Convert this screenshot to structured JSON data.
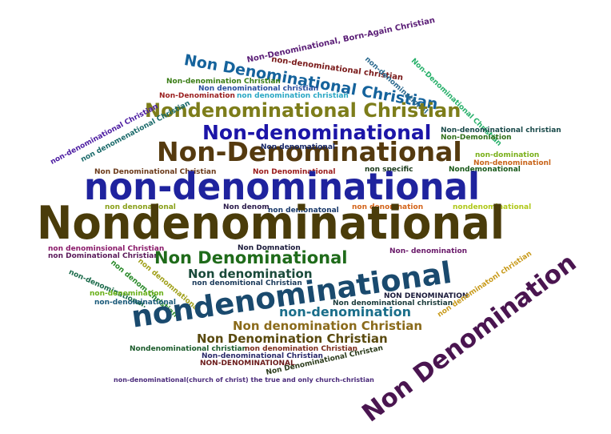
{
  "words": [
    {
      "text": "Non-Denominational, Born-Again Christian",
      "color": "#5b1e77"
    },
    {
      "text": "non-denominational christian",
      "color": "#7a1a1a"
    },
    {
      "text": "Non Denominational Christian",
      "color": "#15639c"
    },
    {
      "text": "non-denominational",
      "color": "#2b6a8f"
    },
    {
      "text": "Non-Denominational Christian",
      "color": "#27b06a"
    },
    {
      "text": "Non-denomination Christian",
      "color": "#3a7d15"
    },
    {
      "text": "Non denominational christian",
      "color": "#2a4fa0"
    },
    {
      "text": "Non-Denomination",
      "color": "#9a1e1e"
    },
    {
      "text": "non denomination christian",
      "color": "#2aa7c4"
    },
    {
      "text": "Nondenominational Christian",
      "color": "#7d7d1a"
    },
    {
      "text": "Non-denominational",
      "color": "#1c15a8"
    },
    {
      "text": "Non-denominational christian",
      "color": "#1a4a4a"
    },
    {
      "text": "Non-Demoniation",
      "color": "#2f6f1a"
    },
    {
      "text": "non-denominational Christian",
      "color": "#4a1aa0"
    },
    {
      "text": "non denomenational Christian",
      "color": "#1a6a6a"
    },
    {
      "text": "Non-Denominational",
      "color": "#553a0f"
    },
    {
      "text": "Non denomational",
      "color": "#1a2a6a"
    },
    {
      "text": "non-domination",
      "color": "#7ab01a"
    },
    {
      "text": "Non-denominationl",
      "color": "#c8641a"
    },
    {
      "text": "Non Denominational Christian",
      "color": "#6b3a1a"
    },
    {
      "text": "Non Denominational",
      "color": "#9a1a1a"
    },
    {
      "text": "non specific",
      "color": "#1a3a1a"
    },
    {
      "text": "Nondemonational",
      "color": "#1a5a1a"
    },
    {
      "text": "non-denominational",
      "color": "#1f239e"
    },
    {
      "text": "non denonational",
      "color": "#8aa01a"
    },
    {
      "text": "Non denom",
      "color": "#2a1a4a"
    },
    {
      "text": "non demonatonal",
      "color": "#1a3a6a"
    },
    {
      "text": "non denomnation",
      "color": "#d4641a"
    },
    {
      "text": "nondenominational",
      "color": "#b0c81a"
    },
    {
      "text": "Nondenominational",
      "color": "#4a3c0a"
    },
    {
      "text": "non denominsional Christian",
      "color": "#8a1a6a"
    },
    {
      "text": "non Dominational Christian",
      "color": "#5a1a5a"
    },
    {
      "text": "non denomnational",
      "color": "#a0a01a"
    },
    {
      "text": "non denom Christian",
      "color": "#2a8a2a"
    },
    {
      "text": "non-denominational.",
      "color": "#1a6a4a"
    },
    {
      "text": "Non Domnation",
      "color": "#1a1a3a"
    },
    {
      "text": "Non Denominational",
      "color": "#1f6b1a"
    },
    {
      "text": "Non- denomination",
      "color": "#6a1a6a"
    },
    {
      "text": "Non denomination",
      "color": "#1a4a3a"
    },
    {
      "text": "non denomitional Christian",
      "color": "#1a3a5a"
    },
    {
      "text": "non-denomination",
      "color": "#6ab01a"
    },
    {
      "text": "non-denominational",
      "color": "#1a5a7a"
    },
    {
      "text": "nondenominational",
      "color": "#1a4a6e"
    },
    {
      "text": "NON DENOMINATION",
      "color": "#1a1a3a"
    },
    {
      "text": "non-denomination",
      "color": "#1a6e8a"
    },
    {
      "text": "Non denominational christian",
      "color": "#1a3a3a"
    },
    {
      "text": "non denominatonl christian",
      "color": "#c89a1a"
    },
    {
      "text": "Non Denomination",
      "color": "#4a1550"
    },
    {
      "text": "Non denomination Christian",
      "color": "#8a6a1a"
    },
    {
      "text": "Non Denomination Christian",
      "color": "#5a4a0f"
    },
    {
      "text": "Nondenominational christian",
      "color": "#1a5a2a"
    },
    {
      "text": "non denomination Christian",
      "color": "#7a2a1a"
    },
    {
      "text": "Non-denominational Christian",
      "color": "#2a2a6a"
    },
    {
      "text": "NON-DENOMINATIONAL",
      "color": "#6a1a1a"
    },
    {
      "text": "Non Denominational Christan",
      "color": "#2a3a1a"
    },
    {
      "text": "non-denominational(church of christ) the true and only church-christian",
      "color": "#4a2a7a"
    }
  ]
}
